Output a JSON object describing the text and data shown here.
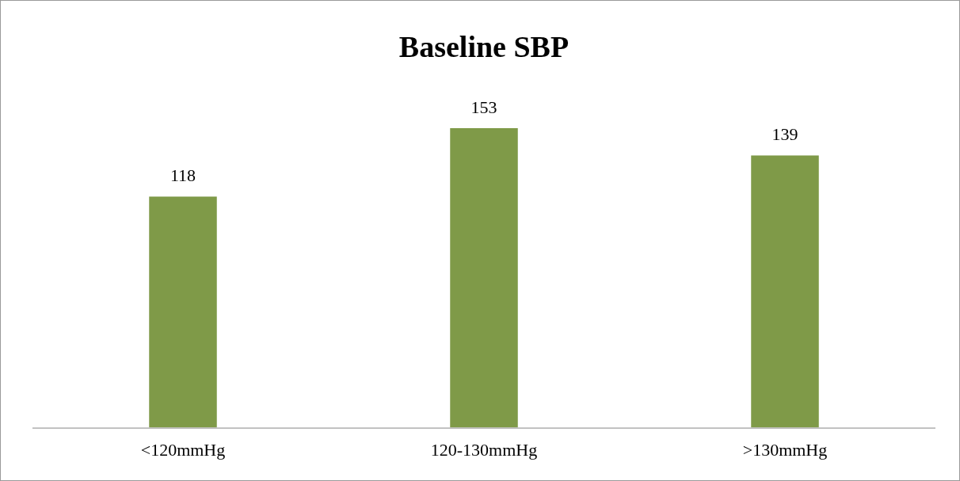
{
  "chart_data": {
    "type": "bar",
    "title": "Baseline SBP",
    "categories": [
      "<120mmHg",
      "120-130mmHg",
      ">130mmHg"
    ],
    "values": [
      118,
      153,
      139
    ],
    "color": "#7f9a48",
    "data_labels": true,
    "grid": false,
    "legend": false
  }
}
